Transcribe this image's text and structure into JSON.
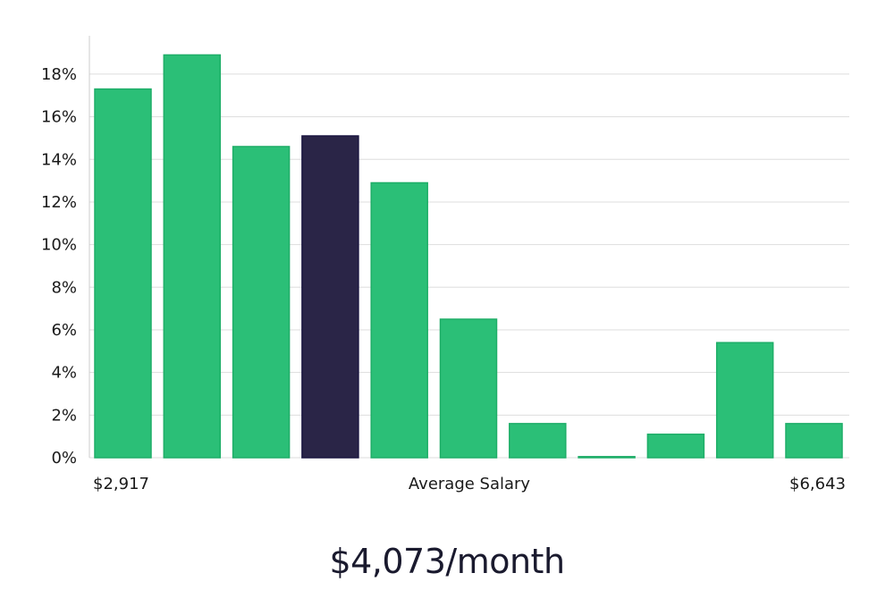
{
  "chart_data": {
    "type": "bar",
    "xlabel": "Average Salary",
    "x_min_label": "$2,917",
    "x_max_label": "$6,643",
    "values": [
      17.3,
      18.9,
      14.6,
      15.1,
      12.9,
      6.5,
      1.6,
      0.05,
      1.1,
      5.4,
      1.6
    ],
    "highlight_index": 3,
    "ylim": [
      0,
      19.8
    ],
    "yticks": [
      0,
      2,
      4,
      6,
      8,
      10,
      12,
      14,
      16,
      18
    ],
    "ytick_labels": [
      "0%",
      "2%",
      "4%",
      "6%",
      "8%",
      "10%",
      "12%",
      "14%",
      "16%",
      "18%"
    ],
    "grid": true,
    "colors": {
      "bar": "#2bbf77",
      "bar_border": "#1fae68",
      "highlight": "#2a2547",
      "highlight_border": "#1a1640",
      "grid": "#dddddd",
      "axis": "#cccccc"
    }
  },
  "headline": "$4,073/month"
}
